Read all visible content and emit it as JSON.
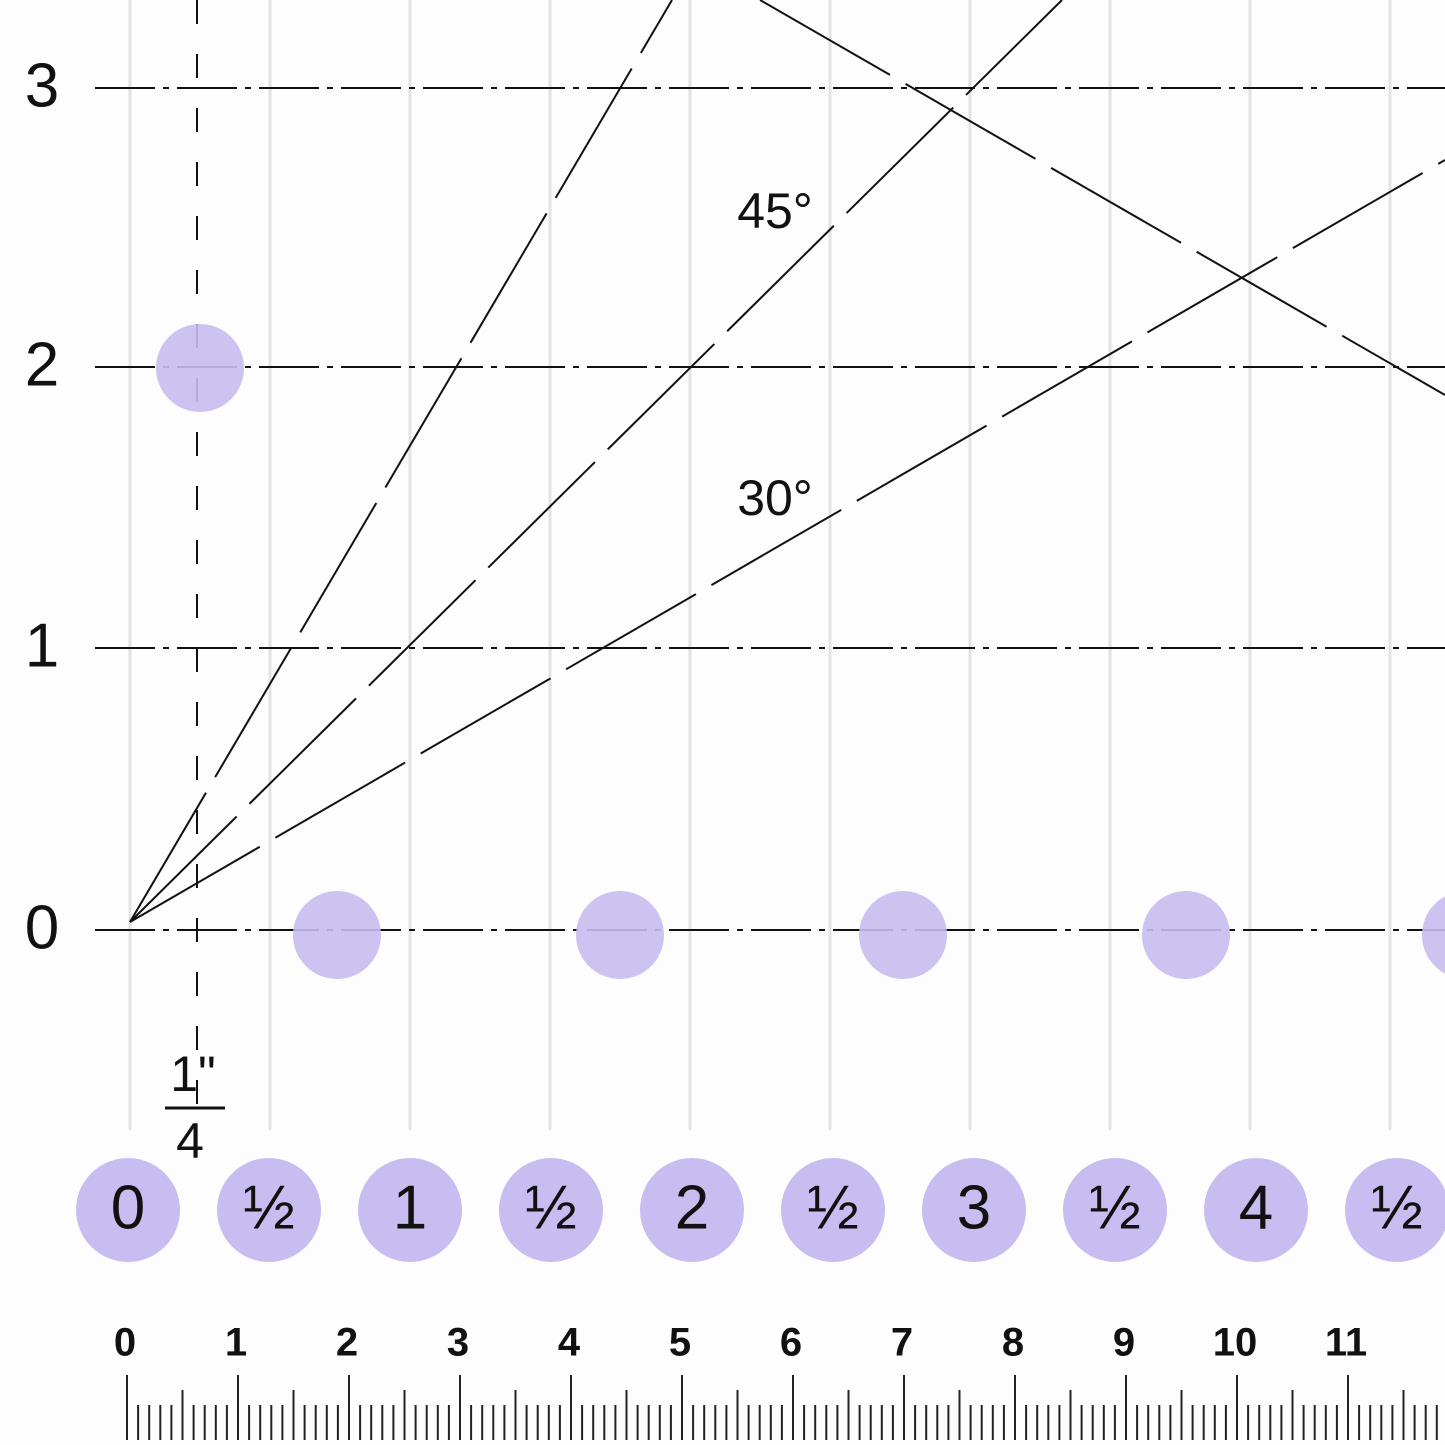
{
  "y_labels": [
    "3",
    "2",
    "1",
    "0"
  ],
  "angle_labels": [
    "45°",
    "30°"
  ],
  "fraction": {
    "numerator": "1\"",
    "denominator": "4"
  },
  "inch_badges": [
    "0",
    "½",
    "1",
    "½",
    "2",
    "½",
    "3",
    "½",
    "4",
    "½"
  ],
  "cm_labels": [
    "0",
    "1",
    "2",
    "3",
    "4",
    "5",
    "6",
    "7",
    "8",
    "9",
    "10",
    "11"
  ]
}
